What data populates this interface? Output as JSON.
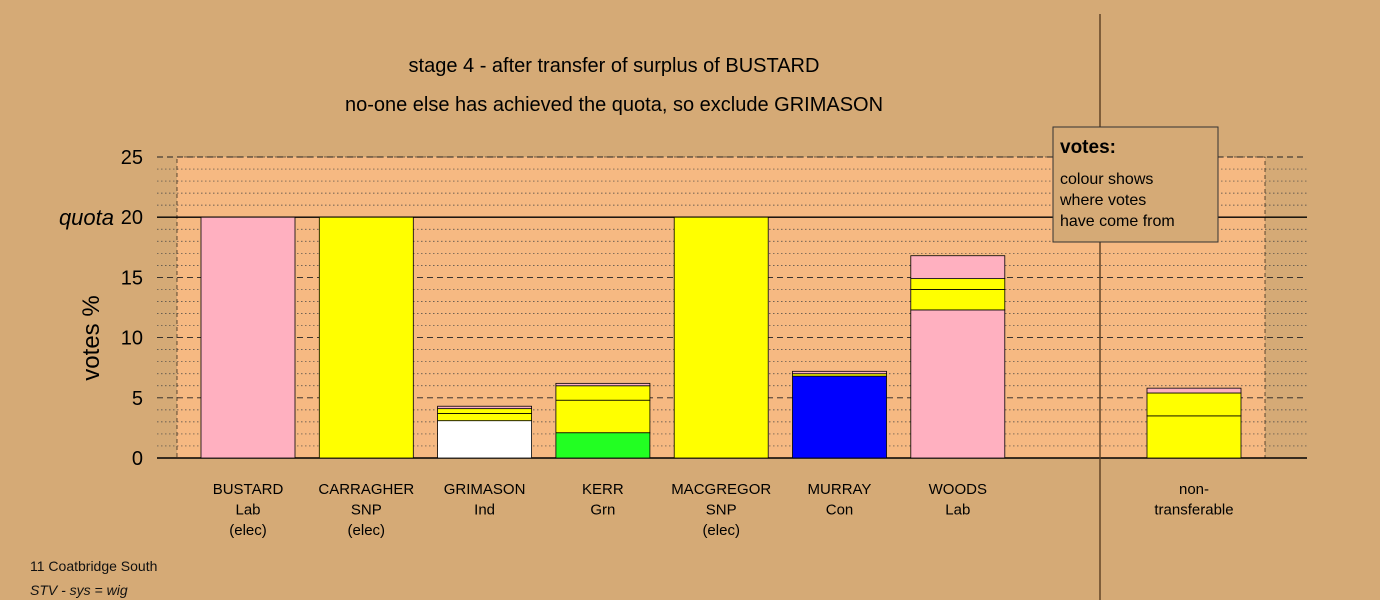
{
  "chart_data": {
    "type": "bar",
    "stacked": true,
    "title": "stage 4 - after transfer of surplus of BUSTARD",
    "subtitle": "no-one else has achieved the quota, so exclude GRIMASON",
    "ylabel": "votes %",
    "ylim": [
      0,
      25
    ],
    "yticks": [
      "0",
      "5",
      "10",
      "15",
      "20",
      "25"
    ],
    "quota_label": "quota",
    "quota_value": 20,
    "grid": true,
    "legend_position": "top-right",
    "legend": {
      "title": "votes:",
      "lines": [
        "colour shows",
        "where votes",
        "have come from"
      ]
    },
    "candidates": [
      {
        "label_lines": [
          "BUSTARD",
          "Lab",
          "(elec)"
        ],
        "segments": [
          {
            "value": 20.0,
            "color": "#ffb0c0"
          }
        ]
      },
      {
        "label_lines": [
          "CARRAGHER",
          "SNP",
          "(elec)"
        ],
        "segments": [
          {
            "value": 20.0,
            "color": "#ffff00"
          }
        ]
      },
      {
        "label_lines": [
          "GRIMASON",
          "Ind"
        ],
        "segments": [
          {
            "value": 3.1,
            "color": "#ffffff"
          },
          {
            "value": 0.6,
            "color": "#ffff00"
          },
          {
            "value": 0.4,
            "color": "#ffff00"
          },
          {
            "value": 0.2,
            "color": "#ffb0c0"
          }
        ]
      },
      {
        "label_lines": [
          "KERR",
          "Grn"
        ],
        "segments": [
          {
            "value": 2.1,
            "color": "#22ff22"
          },
          {
            "value": 2.7,
            "color": "#ffff00"
          },
          {
            "value": 1.2,
            "color": "#ffff00"
          },
          {
            "value": 0.2,
            "color": "#ffb0c0"
          }
        ]
      },
      {
        "label_lines": [
          "MACGREGOR",
          "SNP",
          "(elec)"
        ],
        "segments": [
          {
            "value": 20.0,
            "color": "#ffff00"
          }
        ]
      },
      {
        "label_lines": [
          "MURRAY",
          "Con"
        ],
        "segments": [
          {
            "value": 6.8,
            "color": "#0000ff"
          },
          {
            "value": 0.2,
            "color": "#ffff00"
          },
          {
            "value": 0.2,
            "color": "#ffb0c0"
          }
        ]
      },
      {
        "label_lines": [
          "WOODS",
          "Lab"
        ],
        "segments": [
          {
            "value": 12.3,
            "color": "#ffb0c0"
          },
          {
            "value": 1.7,
            "color": "#ffff00"
          },
          {
            "value": 0.9,
            "color": "#ffff00"
          },
          {
            "value": 1.9,
            "color": "#ffb0c0"
          }
        ]
      }
    ],
    "nontransferable": {
      "label_lines": [
        "non-",
        "transferable"
      ],
      "segments": [
        {
          "value": 3.5,
          "color": "#ffff00"
        },
        {
          "value": 1.9,
          "color": "#ffff00"
        },
        {
          "value": 0.4,
          "color": "#ffb0c0"
        }
      ]
    },
    "colors": {
      "background": "#d5aa76",
      "plot_area": "#f6b982",
      "axis": "#000000"
    }
  },
  "footer": {
    "line1": "11 Coatbridge South",
    "line2": "STV - sys = wig"
  }
}
